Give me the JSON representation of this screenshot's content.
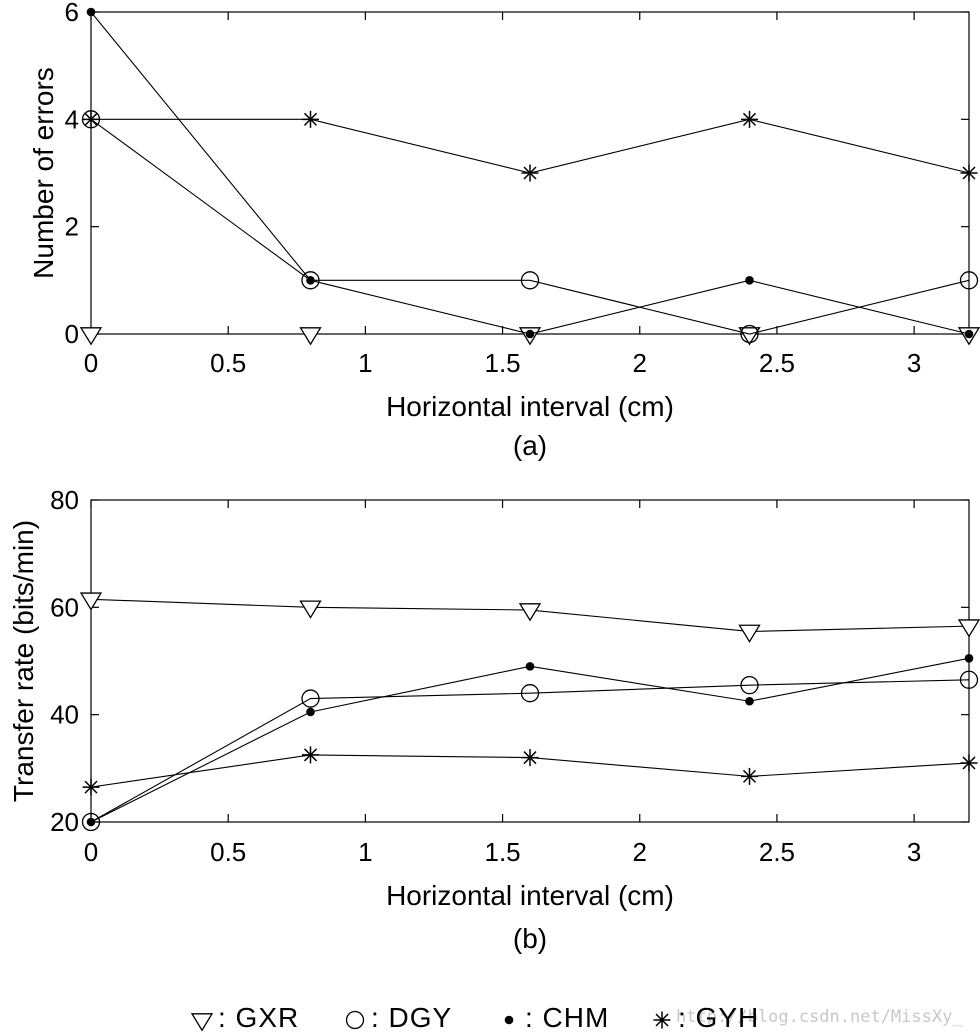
{
  "chart_data": [
    {
      "type": "line",
      "id": "a",
      "sublabel": "(a)",
      "xlabel": "Horizontal interval (cm)",
      "ylabel": "Number of errors",
      "xlim": [
        0,
        3.2
      ],
      "ylim": [
        0,
        6
      ],
      "xticks": [
        0,
        0.5,
        1,
        1.5,
        2,
        2.5,
        3
      ],
      "xtick_labels": [
        "0",
        "0.5",
        "1",
        "1.5",
        "2",
        "2.5",
        "3"
      ],
      "yticks": [
        0,
        2,
        4,
        6
      ],
      "ytick_labels": [
        "0",
        "2",
        "4",
        "6"
      ],
      "grid": false,
      "x": [
        0,
        0.8,
        1.6,
        2.4,
        3.2
      ],
      "series": [
        {
          "name": "GXR",
          "marker": "triangle-down",
          "values": [
            0,
            0,
            0,
            0,
            0
          ]
        },
        {
          "name": "DGY",
          "marker": "circle",
          "values": [
            4,
            1,
            1,
            0,
            1
          ]
        },
        {
          "name": "CHM",
          "marker": "dot",
          "values": [
            6,
            1,
            0,
            1,
            0
          ]
        },
        {
          "name": "GYH",
          "marker": "asterisk",
          "values": [
            4,
            4,
            3,
            4,
            3
          ]
        }
      ]
    },
    {
      "type": "line",
      "id": "b",
      "sublabel": "(b)",
      "xlabel": "Horizontal interval (cm)",
      "ylabel": "Transfer rate (bits/min)",
      "xlim": [
        0,
        3.2
      ],
      "ylim": [
        20,
        80
      ],
      "xticks": [
        0,
        0.5,
        1,
        1.5,
        2,
        2.5,
        3
      ],
      "xtick_labels": [
        "0",
        "0.5",
        "1",
        "1.5",
        "2",
        "2.5",
        "3"
      ],
      "yticks": [
        20,
        40,
        60,
        80
      ],
      "ytick_labels": [
        "20",
        "40",
        "60",
        "80"
      ],
      "grid": false,
      "x": [
        0,
        0.8,
        1.6,
        2.4,
        3.2
      ],
      "series": [
        {
          "name": "GXR",
          "marker": "triangle-down",
          "values": [
            61.5,
            60,
            59.5,
            55.5,
            56.5
          ]
        },
        {
          "name": "DGY",
          "marker": "circle",
          "values": [
            20,
            43,
            44,
            45.5,
            46.5
          ]
        },
        {
          "name": "CHM",
          "marker": "dot",
          "values": [
            20,
            40.5,
            49,
            42.5,
            50.5
          ]
        },
        {
          "name": "GYH",
          "marker": "asterisk",
          "values": [
            26.5,
            32.5,
            32,
            28.5,
            31
          ]
        }
      ]
    }
  ],
  "legend": {
    "placement": "bottom",
    "entries": [
      {
        "marker": "triangle-down",
        "label": ": GXR"
      },
      {
        "marker": "circle",
        "label": ": DGY"
      },
      {
        "marker": "dot",
        "label": ": CHM"
      },
      {
        "marker": "asterisk",
        "label": ": GYH"
      }
    ]
  },
  "watermark": "http://blog.csdn.net/MissXy_"
}
